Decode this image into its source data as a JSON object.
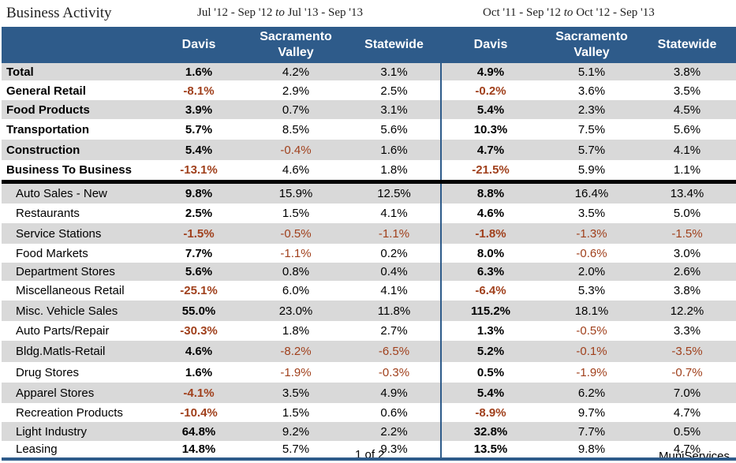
{
  "title": "Business Activity",
  "period1": {
    "from": "Jul '12 - Sep '12",
    "to_word": "to",
    "to": "Jul '13 - Sep '13"
  },
  "period2": {
    "from": "Oct '11 - Sep '12",
    "to_word": "to",
    "to": "Oct '12 - Sep '13"
  },
  "columns": [
    "Davis",
    "Sacramento Valley",
    "Statewide",
    "Davis",
    "Sacramento Valley",
    "Statewide"
  ],
  "colors": {
    "header": "#2e5b8a",
    "shade": "#d9d9d9",
    "negative": "#a0401c"
  },
  "summary_rows": [
    {
      "name": "Total",
      "values": [
        "1.6%",
        "4.2%",
        "3.1%",
        "4.9%",
        "5.1%",
        "3.8%"
      ]
    },
    {
      "name": "General Retail",
      "values": [
        "-8.1%",
        "2.9%",
        "2.5%",
        "-0.2%",
        "3.6%",
        "3.5%"
      ]
    },
    {
      "name": "Food Products",
      "values": [
        "3.9%",
        "0.7%",
        "3.1%",
        "5.4%",
        "2.3%",
        "4.5%"
      ]
    },
    {
      "name": "Transportation",
      "values": [
        "5.7%",
        "8.5%",
        "5.6%",
        "10.3%",
        "7.5%",
        "5.6%"
      ]
    },
    {
      "name": "Construction",
      "values": [
        "5.4%",
        "-0.4%",
        "1.6%",
        "4.7%",
        "5.7%",
        "4.1%"
      ]
    },
    {
      "name": "Business To Business",
      "values": [
        "-13.1%",
        "4.6%",
        "1.8%",
        "-21.5%",
        "5.9%",
        "1.1%"
      ]
    }
  ],
  "detail_rows": [
    {
      "name": "Auto Sales - New",
      "values": [
        "9.8%",
        "15.9%",
        "12.5%",
        "8.8%",
        "16.4%",
        "13.4%"
      ]
    },
    {
      "name": "Restaurants",
      "values": [
        "2.5%",
        "1.5%",
        "4.1%",
        "4.6%",
        "3.5%",
        "5.0%"
      ]
    },
    {
      "name": "Service Stations",
      "values": [
        "-1.5%",
        "-0.5%",
        "-1.1%",
        "-1.8%",
        "-1.3%",
        "-1.5%"
      ]
    },
    {
      "name": "Food Markets",
      "values": [
        "7.7%",
        "-1.1%",
        "0.2%",
        "8.0%",
        "-0.6%",
        "3.0%"
      ]
    },
    {
      "name": "Department Stores",
      "values": [
        "5.6%",
        "0.8%",
        "0.4%",
        "6.3%",
        "2.0%",
        "2.6%"
      ]
    },
    {
      "name": "Miscellaneous Retail",
      "values": [
        "-25.1%",
        "6.0%",
        "4.1%",
        "-6.4%",
        "5.3%",
        "3.8%"
      ]
    },
    {
      "name": "Misc. Vehicle Sales",
      "values": [
        "55.0%",
        "23.0%",
        "11.8%",
        "115.2%",
        "18.1%",
        "12.2%"
      ]
    },
    {
      "name": "Auto Parts/Repair",
      "values": [
        "-30.3%",
        "1.8%",
        "2.7%",
        "1.3%",
        "-0.5%",
        "3.3%"
      ]
    },
    {
      "name": "Bldg.Matls-Retail",
      "values": [
        "4.6%",
        "-8.2%",
        "-6.5%",
        "5.2%",
        "-0.1%",
        "-3.5%"
      ]
    },
    {
      "name": "Drug Stores",
      "values": [
        "1.6%",
        "-1.9%",
        "-0.3%",
        "0.5%",
        "-1.9%",
        "-0.7%"
      ]
    },
    {
      "name": "Apparel Stores",
      "values": [
        "-4.1%",
        "3.5%",
        "4.9%",
        "5.4%",
        "6.2%",
        "7.0%"
      ]
    },
    {
      "name": "Recreation Products",
      "values": [
        "-10.4%",
        "1.5%",
        "0.6%",
        "-8.9%",
        "9.7%",
        "4.7%"
      ]
    },
    {
      "name": "Light Industry",
      "values": [
        "64.8%",
        "9.2%",
        "2.2%",
        "32.8%",
        "7.7%",
        "0.5%"
      ]
    },
    {
      "name": "Leasing",
      "values": [
        "14.8%",
        "5.7%",
        "9.3%",
        "13.5%",
        "9.8%",
        "4.7%"
      ]
    }
  ],
  "footer": {
    "page": "1 of 2",
    "brand": "MuniServices"
  }
}
